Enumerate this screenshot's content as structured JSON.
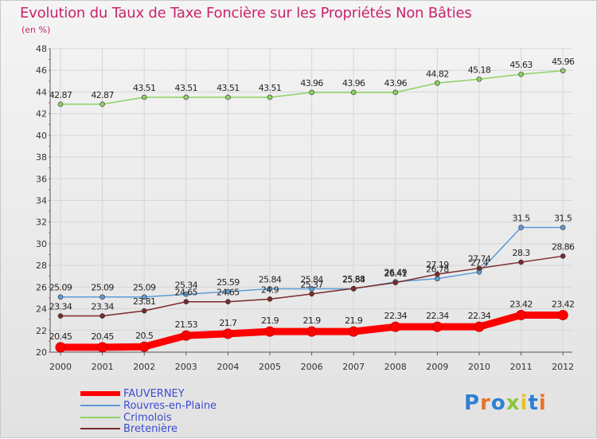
{
  "title": "Evolution du Taux de Taxe Foncière sur les Propriétés Non Bâties",
  "unit": "(en %)",
  "chart_data": {
    "type": "line",
    "x": [
      "2000",
      "2001",
      "2002",
      "2003",
      "2004",
      "2005",
      "2006",
      "2007",
      "2008",
      "2009",
      "2010",
      "2011",
      "2012"
    ],
    "ylim": [
      20,
      48
    ],
    "yticks": [
      20,
      22,
      24,
      26,
      28,
      30,
      32,
      34,
      36,
      38,
      40,
      42,
      44,
      46,
      48
    ],
    "grid": true,
    "legend_position": "bottom-left",
    "series": [
      {
        "name": "FAUVERNEY",
        "color": "#ff0000",
        "values": [
          20.45,
          20.45,
          20.5,
          21.53,
          21.7,
          21.9,
          21.9,
          21.9,
          22.34,
          22.34,
          22.34,
          23.42,
          23.42
        ],
        "labels": [
          "20.45",
          "20.45",
          "20.5",
          "21.53",
          "21.7",
          "21.9",
          "21.9",
          "21.9",
          "22.34",
          "22.34",
          "22.34",
          "23.42",
          "23.42"
        ]
      },
      {
        "name": "Rouvres-en-Plaine",
        "color": "#5b9bd5",
        "values": [
          25.09,
          25.09,
          25.09,
          25.34,
          25.59,
          25.84,
          25.84,
          25.84,
          26.49,
          26.78,
          27.4,
          31.5,
          31.5
        ],
        "labels": [
          "25.09",
          "25.09",
          "25.09",
          "25.34",
          "25.59",
          "25.84",
          "25.84",
          "25.84",
          "26.49",
          "26.78",
          "27.4",
          "31.5",
          "31.5"
        ]
      },
      {
        "name": "Crimolois",
        "color": "#8fd163",
        "values": [
          42.87,
          42.87,
          43.51,
          43.51,
          43.51,
          43.51,
          43.96,
          43.96,
          43.96,
          44.82,
          45.18,
          45.63,
          45.96
        ],
        "labels": [
          "42.87",
          "42.87",
          "43.51",
          "43.51",
          "43.51",
          "43.51",
          "43.96",
          "43.96",
          "43.96",
          "44.82",
          "45.18",
          "45.63",
          "45.96"
        ]
      },
      {
        "name": "Bretenière",
        "color": "#7b2b2b",
        "values": [
          23.34,
          23.34,
          23.81,
          24.65,
          24.65,
          24.9,
          25.37,
          25.88,
          26.41,
          27.19,
          27.74,
          28.3,
          28.86
        ],
        "labels": [
          "23.34",
          "23.34",
          "23.81",
          "24.65",
          "24.65",
          "24.9",
          "25.37",
          "25.88",
          "26.41",
          "27.19",
          "27.74",
          "28.3",
          "28.86"
        ]
      }
    ]
  },
  "logo": {
    "text": "Proxiti",
    "colors": [
      "#2f7fd3",
      "#e8732a",
      "#2f7fd3",
      "#8cc63f",
      "#e8c12a",
      "#2f7fd3",
      "#e8732a"
    ]
  }
}
